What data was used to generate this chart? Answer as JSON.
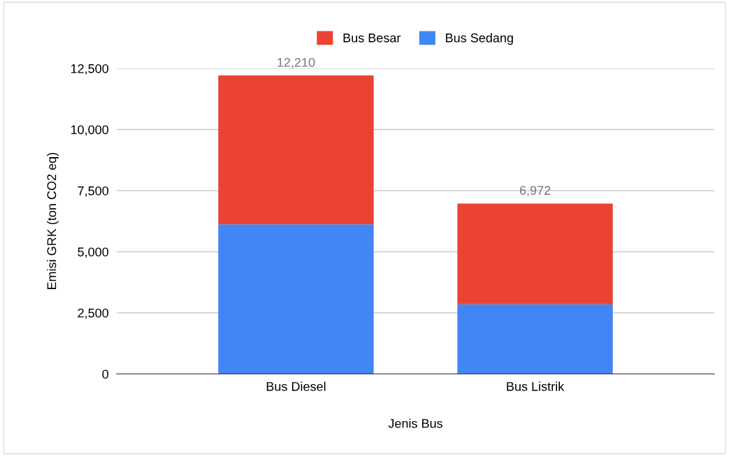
{
  "chart_data": {
    "type": "bar",
    "stacked": true,
    "categories": [
      "Bus Diesel",
      "Bus Listrik"
    ],
    "series": [
      {
        "name": "Bus Sedang",
        "color": "#4285f4",
        "values": [
          6120,
          2850
        ]
      },
      {
        "name": "Bus Besar",
        "color": "#ea4335",
        "values": [
          6090,
          4122
        ]
      }
    ],
    "totals": [
      "12,210",
      "6,972"
    ],
    "xlabel": "Jenis Bus",
    "ylabel": "Emisi GRK (ton CO2 eq)",
    "ylim": [
      0,
      12500
    ],
    "yticks": [
      0,
      {
        "value": 2500,
        "label": "2,500"
      },
      {
        "value": 5000,
        "label": "5,000"
      },
      {
        "value": 7500,
        "label": "7,500"
      },
      {
        "value": 10000,
        "label": "10,000"
      },
      {
        "value": 12500,
        "label": "12,500"
      }
    ],
    "grid": "y",
    "legend": "top"
  }
}
